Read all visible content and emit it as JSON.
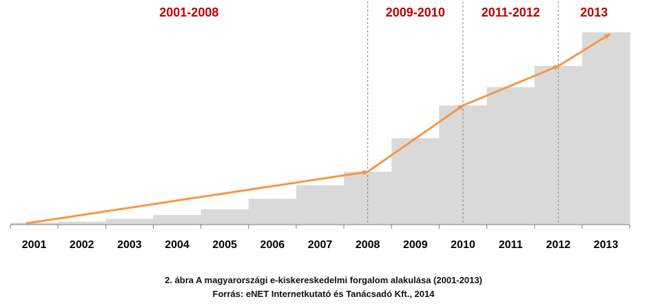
{
  "chart_data": {
    "type": "area",
    "style": "stepped",
    "categories": [
      "2001",
      "2002",
      "2003",
      "2004",
      "2005",
      "2006",
      "2007",
      "2008",
      "2009",
      "2010",
      "2011",
      "2012",
      "2013"
    ],
    "values": [
      1.0,
      1.5,
      3.0,
      5.0,
      8.0,
      13.5,
      20.5,
      27.5,
      45.0,
      62.0,
      71.5,
      82.5,
      100.0
    ],
    "ylim": [
      0,
      100
    ],
    "axis_labels_shown": false,
    "grid": false,
    "fill_color": "#d9d9d9",
    "period_labels": [
      "2001-2008",
      "2009-2010",
      "2011-2012",
      "2013"
    ],
    "period_label_color": "#c00000",
    "divider_years": [
      "2008",
      "2010",
      "2012"
    ],
    "trend_arrow": {
      "color": "#f79646",
      "points": [
        {
          "x": "2001",
          "y": 1.0
        },
        {
          "x": "2008",
          "y": 27.5
        },
        {
          "x": "2010",
          "y": 62.0
        },
        {
          "x": "2012",
          "y": 82.5
        },
        {
          "x": "2013",
          "y": 100.0
        }
      ]
    }
  },
  "caption": {
    "title": "2. ábra A magyarországi e-kiskereskedelmi forgalom alakulása (2001-2013)",
    "source": "Forrás: eNET Internetkutató és Tanácsadó Kft., 2014"
  }
}
